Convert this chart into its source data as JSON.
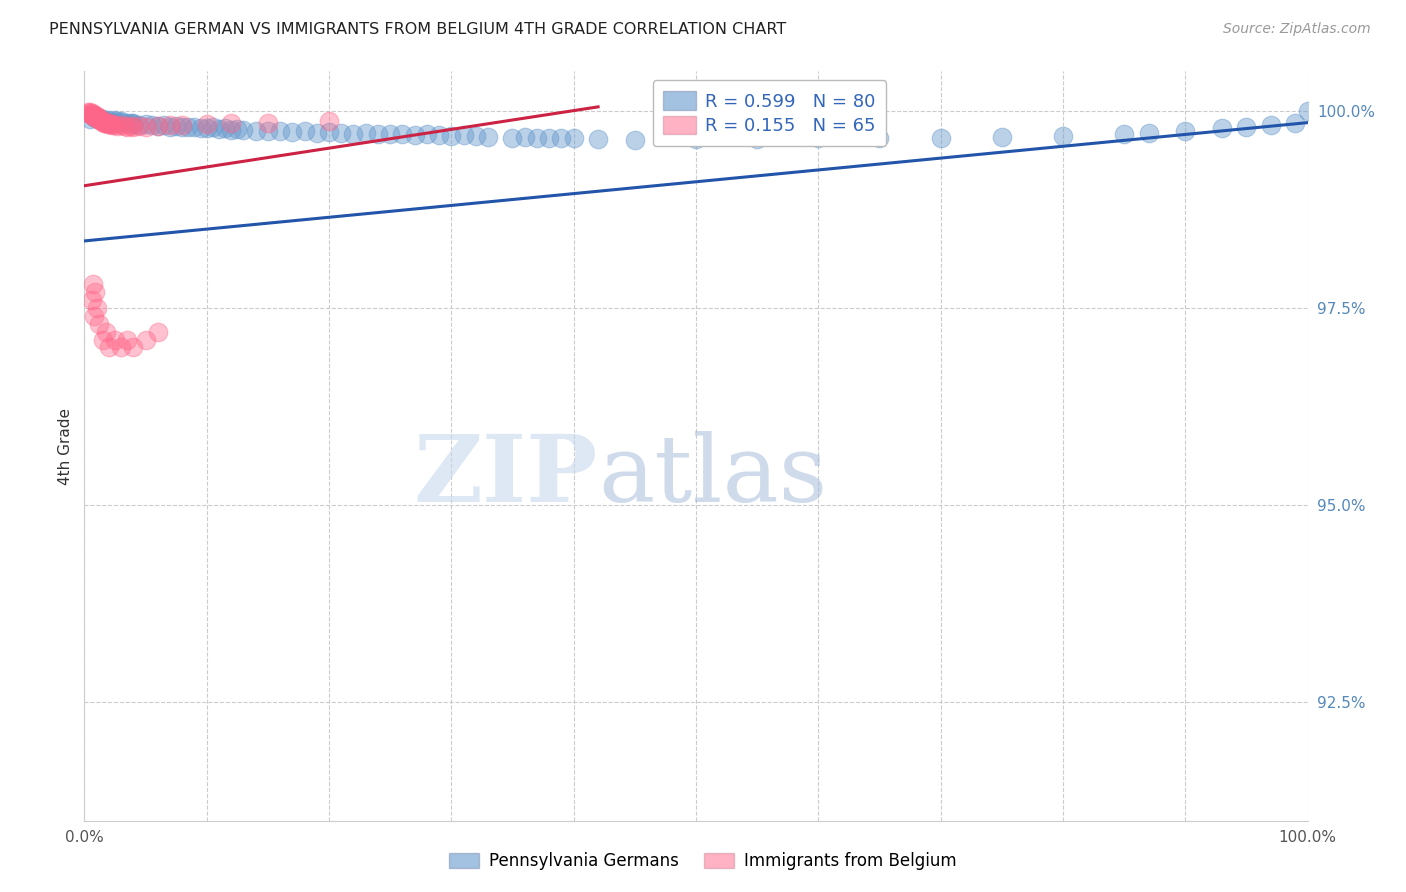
{
  "title": "PENNSYLVANIA GERMAN VS IMMIGRANTS FROM BELGIUM 4TH GRADE CORRELATION CHART",
  "source": "Source: ZipAtlas.com",
  "ylabel": "4th Grade",
  "xlim": [
    0.0,
    1.0
  ],
  "ylim": [
    0.91,
    1.005
  ],
  "yticks": [
    0.925,
    0.95,
    0.975,
    1.0
  ],
  "ytick_labels": [
    "92.5%",
    "95.0%",
    "97.5%",
    "100.0%"
  ],
  "xticks": [
    0.0,
    0.1,
    0.2,
    0.3,
    0.4,
    0.5,
    0.6,
    0.7,
    0.8,
    0.9,
    1.0
  ],
  "xtick_labels": [
    "0.0%",
    "",
    "",
    "",
    "",
    "",
    "",
    "",
    "",
    "",
    "100.0%"
  ],
  "blue_color": "#6699CC",
  "pink_color": "#FF6688",
  "blue_line_color": "#2255AA",
  "pink_line_color": "#CC2244",
  "legend_blue_label": "R = 0.599   N = 80",
  "legend_pink_label": "R = 0.155   N = 65",
  "legend_series_blue": "Pennsylvania Germans",
  "legend_series_pink": "Immigrants from Belgium",
  "watermark_zip": "ZIP",
  "watermark_atlas": "atlas",
  "blue_trend_x": [
    0.0,
    1.0
  ],
  "blue_trend_y": [
    0.9835,
    0.9985
  ],
  "pink_trend_x": [
    0.0,
    0.42
  ],
  "pink_trend_y": [
    0.9905,
    1.0005
  ],
  "blue_points_x": [
    0.005,
    0.007,
    0.009,
    0.01,
    0.012,
    0.015,
    0.015,
    0.018,
    0.02,
    0.022,
    0.025,
    0.025,
    0.028,
    0.03,
    0.03,
    0.035,
    0.038,
    0.04,
    0.04,
    0.045,
    0.05,
    0.055,
    0.06,
    0.065,
    0.07,
    0.075,
    0.08,
    0.085,
    0.09,
    0.095,
    0.1,
    0.105,
    0.11,
    0.115,
    0.12,
    0.125,
    0.13,
    0.14,
    0.15,
    0.16,
    0.17,
    0.18,
    0.19,
    0.2,
    0.21,
    0.22,
    0.23,
    0.24,
    0.25,
    0.26,
    0.27,
    0.28,
    0.29,
    0.3,
    0.31,
    0.32,
    0.33,
    0.35,
    0.36,
    0.37,
    0.38,
    0.39,
    0.4,
    0.42,
    0.45,
    0.5,
    0.55,
    0.6,
    0.65,
    0.7,
    0.75,
    0.8,
    0.85,
    0.87,
    0.9,
    0.93,
    0.95,
    0.97,
    0.99,
    1.0
  ],
  "blue_points_y": [
    0.999,
    0.9993,
    0.9991,
    0.9992,
    0.9989,
    0.999,
    0.9988,
    0.9987,
    0.9988,
    0.9986,
    0.9987,
    0.9988,
    0.9985,
    0.9986,
    0.9987,
    0.9984,
    0.9985,
    0.9983,
    0.9984,
    0.9982,
    0.9983,
    0.9982,
    0.9981,
    0.9982,
    0.998,
    0.9981,
    0.9979,
    0.998,
    0.9979,
    0.9978,
    0.9978,
    0.9979,
    0.9977,
    0.9978,
    0.9976,
    0.9977,
    0.9976,
    0.9975,
    0.9974,
    0.9975,
    0.9973,
    0.9974,
    0.9972,
    0.9973,
    0.9972,
    0.9971,
    0.9972,
    0.997,
    0.9971,
    0.997,
    0.9969,
    0.997,
    0.9969,
    0.9968,
    0.9969,
    0.9968,
    0.9967,
    0.9966,
    0.9967,
    0.9966,
    0.9965,
    0.9966,
    0.9965,
    0.9964,
    0.9963,
    0.9964,
    0.9964,
    0.9965,
    0.9965,
    0.9966,
    0.9967,
    0.9968,
    0.997,
    0.9972,
    0.9975,
    0.9978,
    0.998,
    0.9982,
    0.9985,
    1.0
  ],
  "pink_points_x": [
    0.003,
    0.004,
    0.005,
    0.005,
    0.006,
    0.006,
    0.007,
    0.007,
    0.008,
    0.008,
    0.009,
    0.009,
    0.01,
    0.01,
    0.01,
    0.011,
    0.011,
    0.012,
    0.012,
    0.013,
    0.013,
    0.014,
    0.014,
    0.015,
    0.015,
    0.016,
    0.016,
    0.017,
    0.018,
    0.019,
    0.02,
    0.021,
    0.022,
    0.023,
    0.025,
    0.027,
    0.03,
    0.033,
    0.035,
    0.038,
    0.04,
    0.045,
    0.05,
    0.06,
    0.07,
    0.08,
    0.1,
    0.12,
    0.15,
    0.2,
    0.006,
    0.007,
    0.008,
    0.009,
    0.01,
    0.012,
    0.015,
    0.018,
    0.02,
    0.025,
    0.03,
    0.035,
    0.04,
    0.05,
    0.06
  ],
  "pink_points_y": [
    0.9998,
    0.9997,
    0.9998,
    0.9996,
    0.9997,
    0.9995,
    0.9996,
    0.9994,
    0.9995,
    0.9993,
    0.9994,
    0.9992,
    0.9993,
    0.9991,
    0.9992,
    0.9991,
    0.999,
    0.999,
    0.9989,
    0.9989,
    0.9988,
    0.9988,
    0.9987,
    0.9987,
    0.9986,
    0.9986,
    0.9985,
    0.9985,
    0.9984,
    0.9983,
    0.9984,
    0.9983,
    0.9982,
    0.9983,
    0.9982,
    0.9981,
    0.9982,
    0.9981,
    0.998,
    0.9981,
    0.998,
    0.9981,
    0.998,
    0.9981,
    0.9982,
    0.9982,
    0.9983,
    0.9984,
    0.9985,
    0.9987,
    0.976,
    0.978,
    0.974,
    0.977,
    0.975,
    0.973,
    0.971,
    0.972,
    0.97,
    0.971,
    0.97,
    0.971,
    0.97,
    0.971,
    0.972
  ]
}
